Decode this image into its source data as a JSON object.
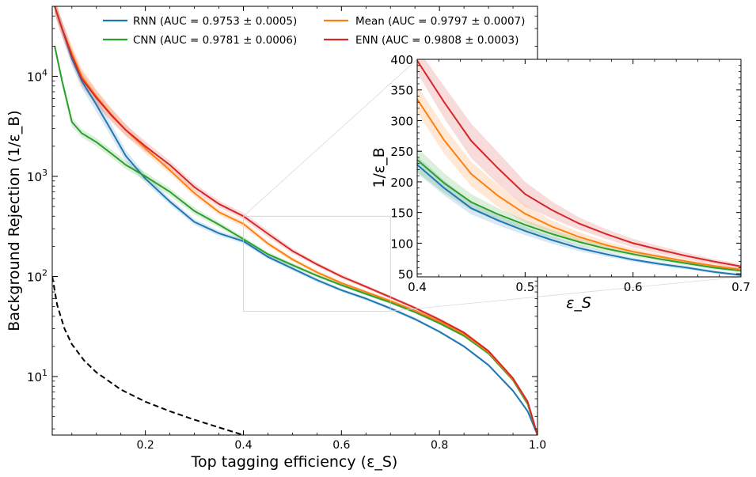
{
  "chart_data": [
    {
      "type": "line",
      "title": "",
      "xlabel": "Top tagging efficiency (ε_S)",
      "ylabel": "Background Rejection (1/ε_B)",
      "xlim": [
        0.01,
        1.0
      ],
      "ylim": [
        2.6,
        50000
      ],
      "yscale": "log",
      "grid": false,
      "x_ticks": [
        {
          "value": 0.2,
          "label": "0.2"
        },
        {
          "value": 0.4,
          "label": "0.4"
        },
        {
          "value": 0.6,
          "label": "0.6"
        },
        {
          "value": 0.8,
          "label": "0.8"
        },
        {
          "value": 1.0,
          "label": "1.0"
        }
      ],
      "y_ticks": [
        {
          "value": 10,
          "base": "10",
          "exp": "1"
        },
        {
          "value": 100,
          "base": "10",
          "exp": "2"
        },
        {
          "value": 1000,
          "base": "10",
          "exp": "3"
        },
        {
          "value": 10000,
          "base": "10",
          "exp": "4"
        }
      ],
      "legend_position": "top",
      "x": [
        0.015,
        0.03,
        0.05,
        0.07,
        0.1,
        0.13,
        0.16,
        0.2,
        0.25,
        0.3,
        0.35,
        0.4,
        0.45,
        0.5,
        0.55,
        0.6,
        0.65,
        0.7,
        0.75,
        0.8,
        0.85,
        0.9,
        0.95,
        0.98,
        1.0
      ],
      "series": [
        {
          "name": "RNN (AUC = 0.9753 ± 0.0005)",
          "color": "#1f77b4",
          "values": [
            50000,
            30000,
            15000,
            9000,
            5200,
            2900,
            1600,
            950,
            560,
            350,
            270,
            225,
            157,
            120,
            92,
            73,
            60,
            48,
            37.5,
            28,
            20,
            13,
            7.2,
            4.5,
            2.6
          ],
          "band": [
            0.18,
            0.18,
            0.18,
            0.18,
            0.18,
            0.16,
            0.14,
            0.1,
            0.08,
            0.07,
            0.06,
            0.06,
            0.05,
            0.05,
            0.05,
            0.04,
            0.04,
            0.04,
            0.04,
            0.03,
            0.03,
            0.03,
            0.03,
            0.03,
            0.03
          ]
        },
        {
          "name": "CNN (AUC = 0.9781 ± 0.0006)",
          "color": "#2ca02c",
          "values": [
            20000,
            9000,
            3500,
            2700,
            2200,
            1700,
            1300,
            1000,
            700,
            450,
            330,
            236,
            167,
            130,
            102,
            82,
            67,
            55,
            44,
            34,
            25.5,
            17,
            9.2,
            5.3,
            2.6
          ],
          "band": [
            0.12,
            0.12,
            0.12,
            0.1,
            0.1,
            0.1,
            0.1,
            0.1,
            0.09,
            0.08,
            0.07,
            0.06,
            0.05,
            0.05,
            0.04,
            0.04,
            0.04,
            0.04,
            0.03,
            0.03,
            0.03,
            0.03,
            0.03,
            0.03,
            0.03
          ]
        },
        {
          "name": "Mean (AUC = 0.9797 ± 0.0007)",
          "color": "#ff7f0e",
          "values": [
            50000,
            30000,
            17000,
            10000,
            6300,
            4200,
            2900,
            1900,
            1150,
            680,
            440,
            335,
            213,
            148,
            110,
            86,
            70,
            57,
            45.5,
            35.5,
            26.5,
            17.5,
            9.4,
            5.5,
            2.6
          ],
          "band": [
            0.2,
            0.2,
            0.2,
            0.2,
            0.18,
            0.16,
            0.14,
            0.12,
            0.09,
            0.08,
            0.07,
            0.07,
            0.06,
            0.05,
            0.05,
            0.05,
            0.04,
            0.04,
            0.04,
            0.04,
            0.03,
            0.03,
            0.03,
            0.03,
            0.03
          ]
        },
        {
          "name": "ENN (AUC = 0.9808 ± 0.0003)",
          "color": "#d62728",
          "values": [
            50000,
            30000,
            16000,
            9500,
            6100,
            4100,
            2900,
            2000,
            1300,
            780,
            530,
            400,
            267,
            180,
            132,
            100,
            79,
            62,
            48.5,
            37,
            27.5,
            18,
            9.6,
            5.6,
            2.6
          ],
          "band": [
            0.2,
            0.2,
            0.2,
            0.2,
            0.18,
            0.16,
            0.14,
            0.12,
            0.1,
            0.09,
            0.08,
            0.08,
            0.08,
            0.06,
            0.05,
            0.05,
            0.04,
            0.04,
            0.04,
            0.04,
            0.03,
            0.03,
            0.03,
            0.03,
            0.03
          ]
        },
        {
          "name": "",
          "color": "#000000",
          "dashed": true,
          "x": [
            0.01,
            0.02,
            0.035,
            0.05,
            0.075,
            0.1,
            0.15,
            0.2,
            0.25,
            0.3,
            0.35,
            0.4
          ],
          "values": [
            100,
            52,
            30,
            21,
            14.5,
            11,
            7.4,
            5.6,
            4.5,
            3.7,
            3.1,
            2.6
          ]
        }
      ],
      "zoom_box": {
        "xlim": [
          0.4,
          0.7
        ],
        "ylim": [
          45,
          400
        ]
      }
    },
    {
      "type": "line",
      "title": "",
      "xlabel": "ε_S",
      "ylabel": "1/ε_B",
      "xlim": [
        0.4,
        0.7
      ],
      "ylim": [
        45,
        400
      ],
      "yscale": "linear",
      "grid": false,
      "x_ticks": [
        {
          "value": 0.4,
          "label": "0.4"
        },
        {
          "value": 0.5,
          "label": "0.5"
        },
        {
          "value": 0.6,
          "label": "0.6"
        },
        {
          "value": 0.7,
          "label": "0.7"
        }
      ],
      "y_ticks": [
        {
          "value": 50,
          "label": "50"
        },
        {
          "value": 100,
          "label": "100"
        },
        {
          "value": 150,
          "label": "150"
        },
        {
          "value": 200,
          "label": "200"
        },
        {
          "value": 250,
          "label": "250"
        },
        {
          "value": 300,
          "label": "300"
        },
        {
          "value": 350,
          "label": "350"
        },
        {
          "value": 400,
          "label": "400"
        }
      ],
      "x": [
        0.4,
        0.425,
        0.45,
        0.475,
        0.5,
        0.525,
        0.55,
        0.575,
        0.6,
        0.625,
        0.65,
        0.675,
        0.7
      ],
      "series": [
        {
          "name": "RNN",
          "color": "#1f77b4",
          "values": [
            228,
            190,
            157,
            137,
            120,
            105,
            92,
            82,
            73,
            66,
            60,
            53,
            48
          ],
          "band": [
            14,
            12,
            10,
            8,
            7,
            6,
            5,
            4,
            3.5,
            3,
            3,
            2.5,
            2.5
          ]
        },
        {
          "name": "CNN",
          "color": "#2ca02c",
          "values": [
            236,
            198,
            167,
            147,
            130,
            115,
            102,
            91,
            82,
            74,
            67,
            60,
            55
          ],
          "band": [
            20,
            16,
            13,
            10,
            8,
            7,
            6,
            5,
            4,
            3.5,
            3,
            3,
            2.5
          ]
        },
        {
          "name": "Mean",
          "color": "#ff7f0e",
          "values": [
            335,
            268,
            213,
            177,
            148,
            127,
            110,
            97,
            86,
            78,
            70,
            63,
            57
          ],
          "band": [
            22,
            22,
            20,
            18,
            14,
            10,
            8,
            6,
            5,
            4,
            4,
            3,
            3
          ]
        },
        {
          "name": "ENN",
          "color": "#d62728",
          "values": [
            398,
            330,
            267,
            222,
            180,
            154,
            132,
            115,
            100,
            89,
            79,
            70,
            62
          ],
          "band": [
            20,
            26,
            28,
            26,
            20,
            14,
            10,
            8,
            7,
            6,
            5,
            4,
            4
          ]
        }
      ]
    }
  ]
}
